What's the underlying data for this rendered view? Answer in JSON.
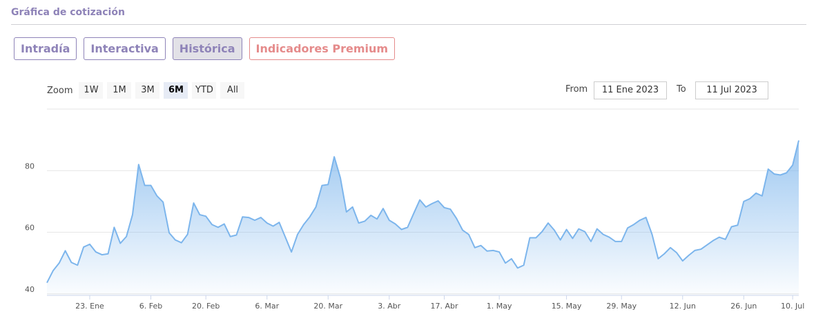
{
  "header": {
    "title": "Gráfica de cotización"
  },
  "tabs": [
    {
      "label": "Intradía"
    },
    {
      "label": "Interactiva"
    },
    {
      "label": "Histórica",
      "active": true
    },
    {
      "label": "Indicadores Premium",
      "premium": true
    }
  ],
  "zoom": {
    "label": "Zoom",
    "options": [
      {
        "label": "1W"
      },
      {
        "label": "1M"
      },
      {
        "label": "3M"
      },
      {
        "label": "6M",
        "active": true
      },
      {
        "label": "YTD"
      },
      {
        "label": "All"
      }
    ]
  },
  "range": {
    "from_label": "From",
    "from": "11 Ene 2023",
    "to_label": "To",
    "to": "11 Jul 2023"
  },
  "chart_data": {
    "type": "area",
    "color": "#7cb5ec",
    "grid": true,
    "ylim": [
      39.5,
      100
    ],
    "yticks": [
      40,
      60,
      80
    ],
    "categories": [
      null,
      null,
      null,
      null,
      null,
      null,
      null,
      "23. Ene",
      null,
      null,
      null,
      null,
      null,
      null,
      null,
      null,
      null,
      "6. Feb",
      null,
      null,
      null,
      null,
      null,
      null,
      null,
      null,
      "20. Feb",
      null,
      null,
      null,
      null,
      null,
      null,
      null,
      null,
      null,
      "6. Mar",
      null,
      null,
      null,
      null,
      null,
      null,
      null,
      null,
      null,
      "20. Mar",
      null,
      null,
      null,
      null,
      null,
      null,
      null,
      null,
      null,
      "3. Abr",
      null,
      null,
      null,
      null,
      null,
      null,
      null,
      null,
      "17. Abr",
      null,
      null,
      null,
      null,
      null,
      null,
      null,
      null,
      "1. May",
      null,
      null,
      null,
      null,
      null,
      null,
      null,
      null,
      null,
      null,
      "15. May",
      null,
      null,
      null,
      null,
      null,
      null,
      null,
      null,
      "29. May",
      null,
      null,
      null,
      null,
      null,
      null,
      null,
      null,
      null,
      "12. Jun",
      null,
      null,
      null,
      null,
      null,
      null,
      null,
      null,
      null,
      "26. Jun",
      null,
      null,
      null,
      null,
      null,
      null,
      null,
      "10. Jul",
      null
    ],
    "values": [
      43.6,
      47.5,
      50,
      54,
      50.2,
      49.3,
      55.2,
      56.1,
      53.6,
      52.7,
      53,
      61.6,
      56.4,
      58.6,
      65.7,
      82,
      75.2,
      75.2,
      71.8,
      69.8,
      59.8,
      57.5,
      56.6,
      59.3,
      69.5,
      65.7,
      65.2,
      62.5,
      61.6,
      62.7,
      58.6,
      59.1,
      65,
      64.8,
      63.9,
      64.8,
      63,
      62,
      63.2,
      58.4,
      53.6,
      59.3,
      62.5,
      65,
      68.2,
      75.2,
      75.5,
      84.5,
      77.7,
      66.6,
      68.2,
      63,
      63.6,
      65.5,
      64.3,
      67.7,
      63.9,
      62.7,
      60.9,
      61.6,
      66.1,
      70.5,
      68.2,
      69.3,
      70.2,
      68,
      67.5,
      64.5,
      60.7,
      59.3,
      55,
      55.7,
      53.9,
      54.1,
      53.6,
      50,
      51.4,
      48.4,
      49.3,
      58.2,
      58.2,
      60.2,
      63,
      60.7,
      57.5,
      60.9,
      58,
      61.1,
      60.2,
      57,
      61.1,
      59.3,
      58.4,
      57,
      57,
      61.4,
      62.5,
      63.9,
      64.8,
      59.3,
      51.4,
      53,
      55,
      53.4,
      50.7,
      52.5,
      54.1,
      54.5,
      55.9,
      57.3,
      58.4,
      57.7,
      61.8,
      62.3,
      70,
      70.9,
      72.7,
      71.8,
      80.5,
      78.9,
      78.6,
      79.3,
      81.8,
      89.8
    ]
  }
}
